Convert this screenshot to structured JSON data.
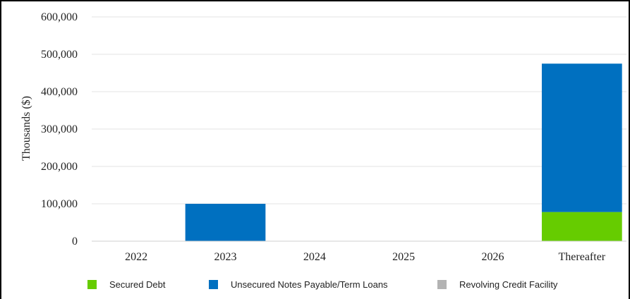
{
  "chart_data": {
    "type": "bar",
    "stacked": true,
    "categories": [
      "2022",
      "2023",
      "2024",
      "2025",
      "2026",
      "Thereafter"
    ],
    "series": [
      {
        "name": "Secured Debt",
        "color": "#66cc00",
        "values": [
          0,
          0,
          0,
          0,
          0,
          78000
        ]
      },
      {
        "name": "Unsecured Notes Payable/Term Loans",
        "color": "#0070c0",
        "values": [
          0,
          100000,
          0,
          0,
          0,
          397000
        ]
      },
      {
        "name": "Revolving Credit Facility",
        "color": "#b3b3b3",
        "values": [
          0,
          0,
          0,
          0,
          0,
          0
        ]
      }
    ],
    "ylabel": "Thousands ($)",
    "xlabel": "",
    "ylim": [
      0,
      600000
    ],
    "yticks": [
      "0",
      "100,000",
      "200,000",
      "300,000",
      "400,000",
      "500,000",
      "600,000"
    ],
    "grid": true,
    "legend": "bottom"
  }
}
